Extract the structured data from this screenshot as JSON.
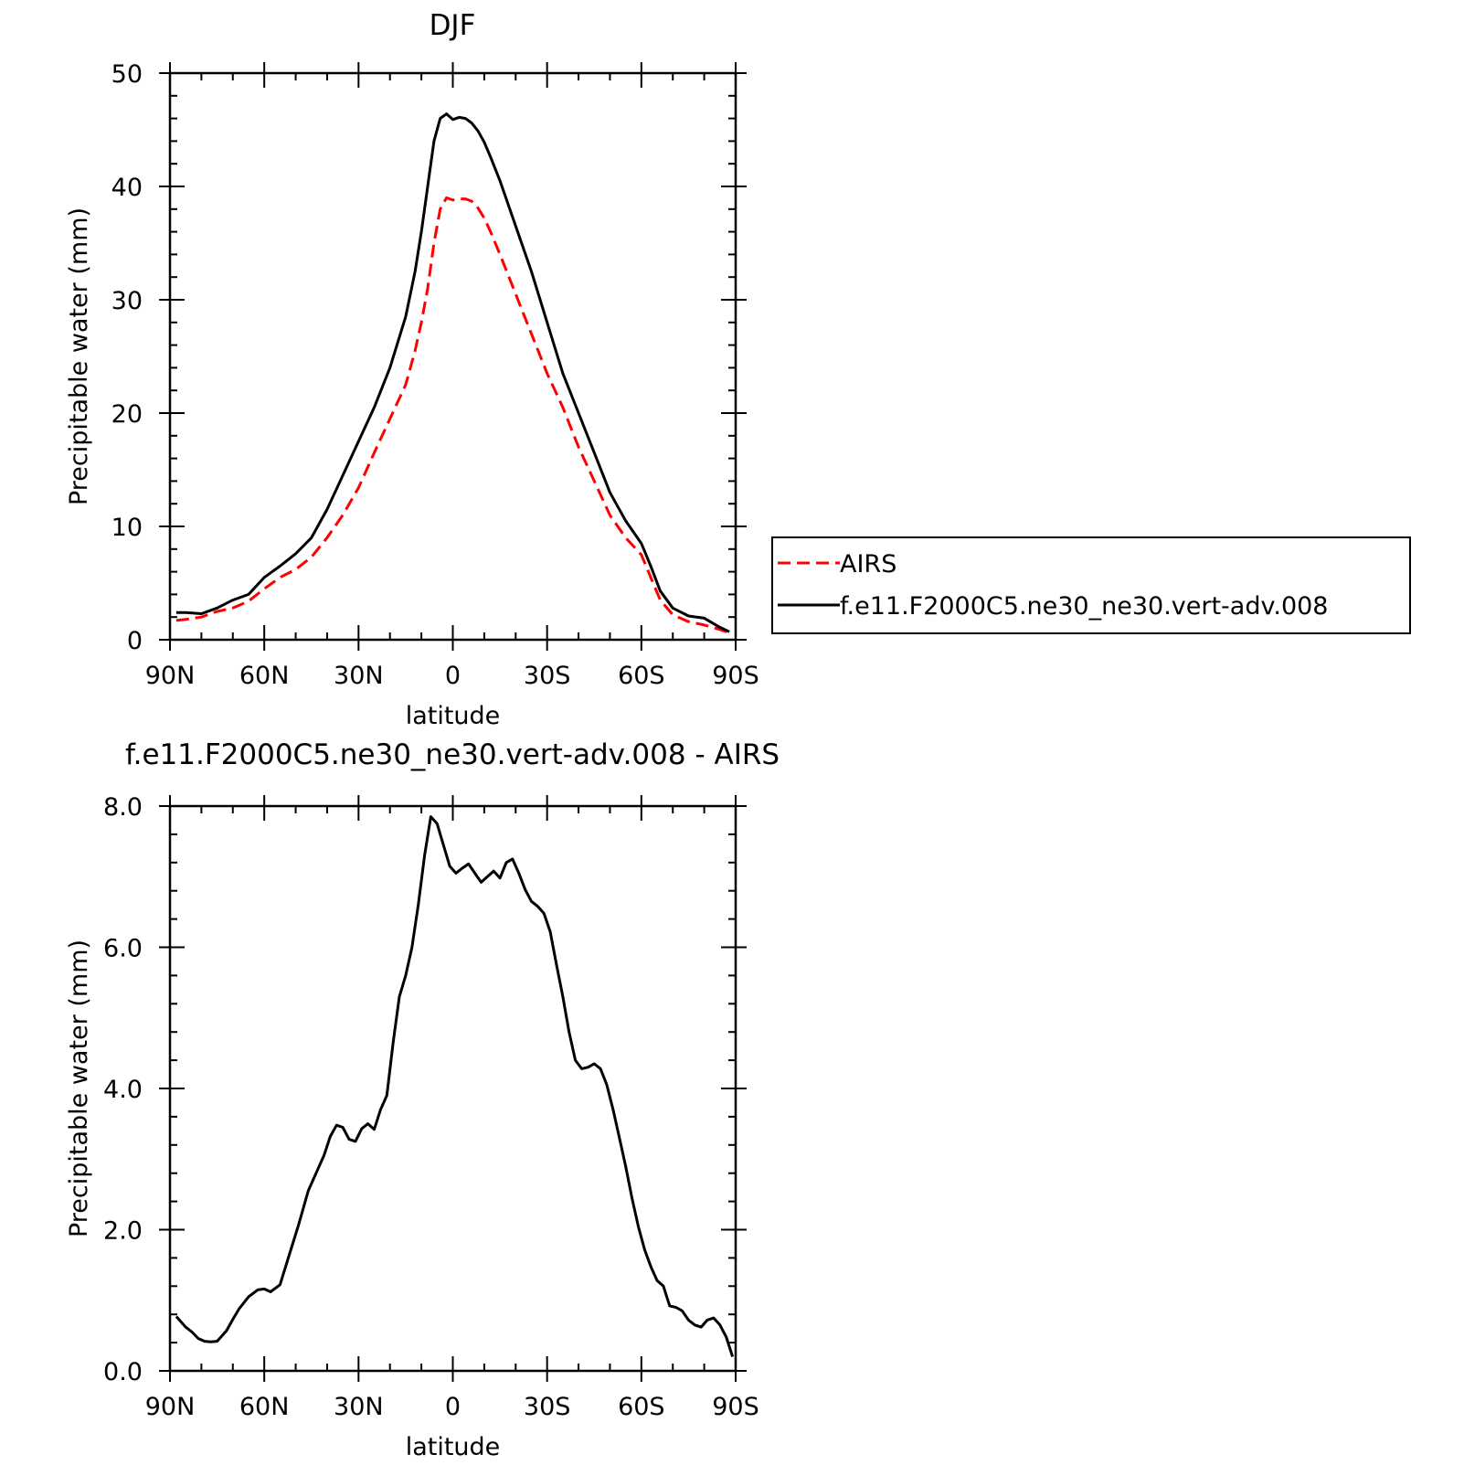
{
  "chart_data": [
    {
      "type": "line",
      "title": "DJF",
      "xlabel": "latitude",
      "ylabel": "Precipitable water (mm)",
      "xlim": [
        90,
        -90
      ],
      "ylim": [
        0,
        50
      ],
      "x_ticks": [
        90,
        60,
        30,
        0,
        -30,
        -60,
        -90
      ],
      "x_tick_labels": [
        "90N",
        "60N",
        "30N",
        "0",
        "30S",
        "60S",
        "90S"
      ],
      "y_ticks": [
        0,
        10,
        20,
        30,
        40,
        50
      ],
      "y_tick_labels": [
        "0",
        "10",
        "20",
        "30",
        "40",
        "50"
      ],
      "legend": {
        "position": "right",
        "entries": [
          "AIRS",
          "f.e11.F2000C5.ne30_ne30.vert-adv.008"
        ]
      },
      "series": [
        {
          "name": "AIRS",
          "color": "#ff0000",
          "dash": "dashed",
          "x": [
            88,
            85,
            80,
            75,
            70,
            65,
            60,
            55,
            50,
            45,
            40,
            35,
            30,
            25,
            20,
            15,
            12,
            10,
            8,
            6,
            4,
            2,
            0,
            -2,
            -4,
            -6,
            -8,
            -10,
            -12,
            -15,
            -20,
            -25,
            -30,
            -35,
            -40,
            -45,
            -50,
            -55,
            -60,
            -63,
            -66,
            -70,
            -75,
            -80,
            -85,
            -88
          ],
          "y": [
            1.7,
            1.8,
            2.0,
            2.5,
            2.8,
            3.4,
            4.5,
            5.5,
            6.2,
            7.3,
            9.0,
            11.0,
            13.4,
            16.5,
            19.5,
            22.5,
            25.5,
            28.0,
            31.0,
            35.0,
            38.0,
            39.0,
            38.8,
            38.9,
            38.9,
            38.7,
            38.1,
            37.2,
            36.0,
            34.0,
            30.5,
            27.0,
            23.5,
            20.5,
            17.0,
            14.0,
            11.0,
            9.0,
            7.5,
            5.5,
            3.5,
            2.2,
            1.6,
            1.3,
            0.9,
            0.6
          ]
        },
        {
          "name": "f.e11.F2000C5.ne30_ne30.vert-adv.008",
          "color": "#000000",
          "dash": "solid",
          "x": [
            88,
            85,
            80,
            75,
            70,
            65,
            60,
            55,
            50,
            45,
            40,
            35,
            30,
            25,
            20,
            15,
            12,
            10,
            8,
            6,
            4,
            2,
            0,
            -2,
            -4,
            -6,
            -8,
            -10,
            -12,
            -15,
            -20,
            -25,
            -30,
            -35,
            -40,
            -45,
            -50,
            -55,
            -60,
            -63,
            -66,
            -70,
            -75,
            -80,
            -85,
            -88
          ],
          "y": [
            2.4,
            2.4,
            2.3,
            2.8,
            3.5,
            4.0,
            5.5,
            6.5,
            7.6,
            9.0,
            11.5,
            14.5,
            17.5,
            20.5,
            24.0,
            28.5,
            32.5,
            36.0,
            40.0,
            44.0,
            46.0,
            46.4,
            45.9,
            46.1,
            46.0,
            45.6,
            44.9,
            43.9,
            42.6,
            40.5,
            36.5,
            32.5,
            28.0,
            23.5,
            20.0,
            16.5,
            13.0,
            10.5,
            8.5,
            6.5,
            4.3,
            2.8,
            2.1,
            1.9,
            1.1,
            0.7
          ]
        }
      ]
    },
    {
      "type": "line",
      "title": "f.e11.F2000C5.ne30_ne30.vert-adv.008 - AIRS",
      "xlabel": "latitude",
      "ylabel": "Precipitable water (mm)",
      "xlim": [
        90,
        -90
      ],
      "ylim": [
        0,
        8
      ],
      "x_ticks": [
        90,
        60,
        30,
        0,
        -30,
        -60,
        -90
      ],
      "x_tick_labels": [
        "90N",
        "60N",
        "30N",
        "0",
        "30S",
        "60S",
        "90S"
      ],
      "y_ticks": [
        0,
        2,
        4,
        6,
        8
      ],
      "y_tick_labels": [
        "0.0",
        "2.0",
        "4.0",
        "6.0",
        "8.0"
      ],
      "series": [
        {
          "color": "#000000",
          "dash": "solid",
          "x": [
            88,
            85,
            83,
            81,
            79,
            77,
            75,
            72,
            70,
            68,
            65,
            62,
            60,
            58,
            55,
            52,
            49,
            46,
            43,
            41,
            39,
            37,
            35,
            33,
            31,
            29,
            27,
            25,
            23,
            21,
            19,
            17,
            15,
            13,
            11,
            9,
            7,
            5,
            3,
            1,
            -1,
            -3,
            -5,
            -7,
            -9,
            -11,
            -13,
            -15,
            -17,
            -19,
            -21,
            -23,
            -25,
            -27,
            -29,
            -31,
            -33,
            -35,
            -37,
            -39,
            -41,
            -43,
            -45,
            -47,
            -49,
            -51,
            -53,
            -55,
            -57,
            -59,
            -61,
            -63,
            -65,
            -67,
            -69,
            -71,
            -73,
            -75,
            -77,
            -79,
            -81,
            -83,
            -85,
            -87,
            -89
          ],
          "y": [
            0.77,
            0.62,
            0.55,
            0.46,
            0.42,
            0.41,
            0.42,
            0.57,
            0.73,
            0.88,
            1.05,
            1.15,
            1.16,
            1.12,
            1.22,
            1.65,
            2.08,
            2.55,
            2.85,
            3.05,
            3.32,
            3.48,
            3.45,
            3.28,
            3.25,
            3.43,
            3.5,
            3.42,
            3.7,
            3.9,
            4.65,
            5.3,
            5.6,
            6.0,
            6.6,
            7.3,
            7.85,
            7.75,
            7.45,
            7.15,
            7.05,
            7.12,
            7.18,
            7.05,
            6.92,
            7.0,
            7.08,
            6.98,
            7.2,
            7.25,
            7.05,
            6.82,
            6.65,
            6.58,
            6.48,
            6.22,
            5.75,
            5.3,
            4.8,
            4.4,
            4.28,
            4.3,
            4.35,
            4.28,
            4.05,
            3.7,
            3.3,
            2.9,
            2.45,
            2.05,
            1.72,
            1.48,
            1.28,
            1.2,
            0.92,
            0.9,
            0.85,
            0.72,
            0.65,
            0.62,
            0.72,
            0.75,
            0.65,
            0.48,
            0.2
          ]
        }
      ]
    }
  ]
}
